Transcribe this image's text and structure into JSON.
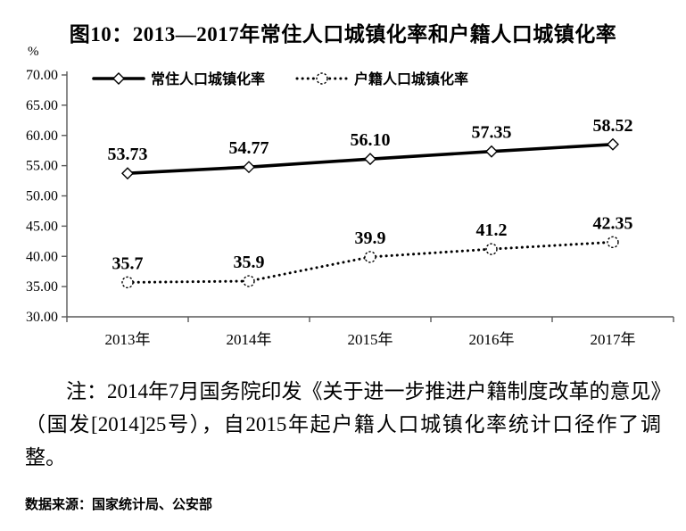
{
  "figure": {
    "title": "图10：2013—2017年常住人口城镇化率和户籍人口城镇化率",
    "y_unit": "%"
  },
  "chart_data": {
    "type": "line",
    "title": "图10：2013—2017年常住人口城镇化率和户籍人口城镇化率",
    "categories": [
      "2013年",
      "2014年",
      "2015年",
      "2016年",
      "2017年"
    ],
    "series": [
      {
        "name": "常住人口城镇化率",
        "values": [
          53.73,
          54.77,
          56.1,
          57.35,
          58.52
        ],
        "labels": [
          "53.73",
          "54.77",
          "56.10",
          "57.35",
          "58.52"
        ],
        "line_style": "solid",
        "marker": "diamond"
      },
      {
        "name": "户籍人口城镇化率",
        "values": [
          35.7,
          35.9,
          39.9,
          41.2,
          42.35
        ],
        "labels": [
          "35.7",
          "35.9",
          "39.9",
          "41.2",
          "42.35"
        ],
        "line_style": "dotted",
        "marker": "circle"
      }
    ],
    "xlabel": "",
    "ylabel": "%",
    "ylim": [
      30,
      70
    ],
    "y_ticks": [
      "30.00",
      "35.00",
      "40.00",
      "45.00",
      "50.00",
      "55.00",
      "60.00",
      "65.00",
      "70.00"
    ],
    "grid": false,
    "legend_position": "top-inside",
    "data_labels_shown": true
  },
  "note": {
    "text": "注：2014年7月国务院印发《关于进一步推进户籍制度改革的意见》（国发[2014]25号），自2015年起户籍人口城镇化率统计口径作了调整。"
  },
  "source": {
    "text": "数据来源：国家统计局、公安部"
  },
  "colors": {
    "line": "#000000",
    "axis": "#595959",
    "background": "#ffffff",
    "text": "#000000"
  }
}
